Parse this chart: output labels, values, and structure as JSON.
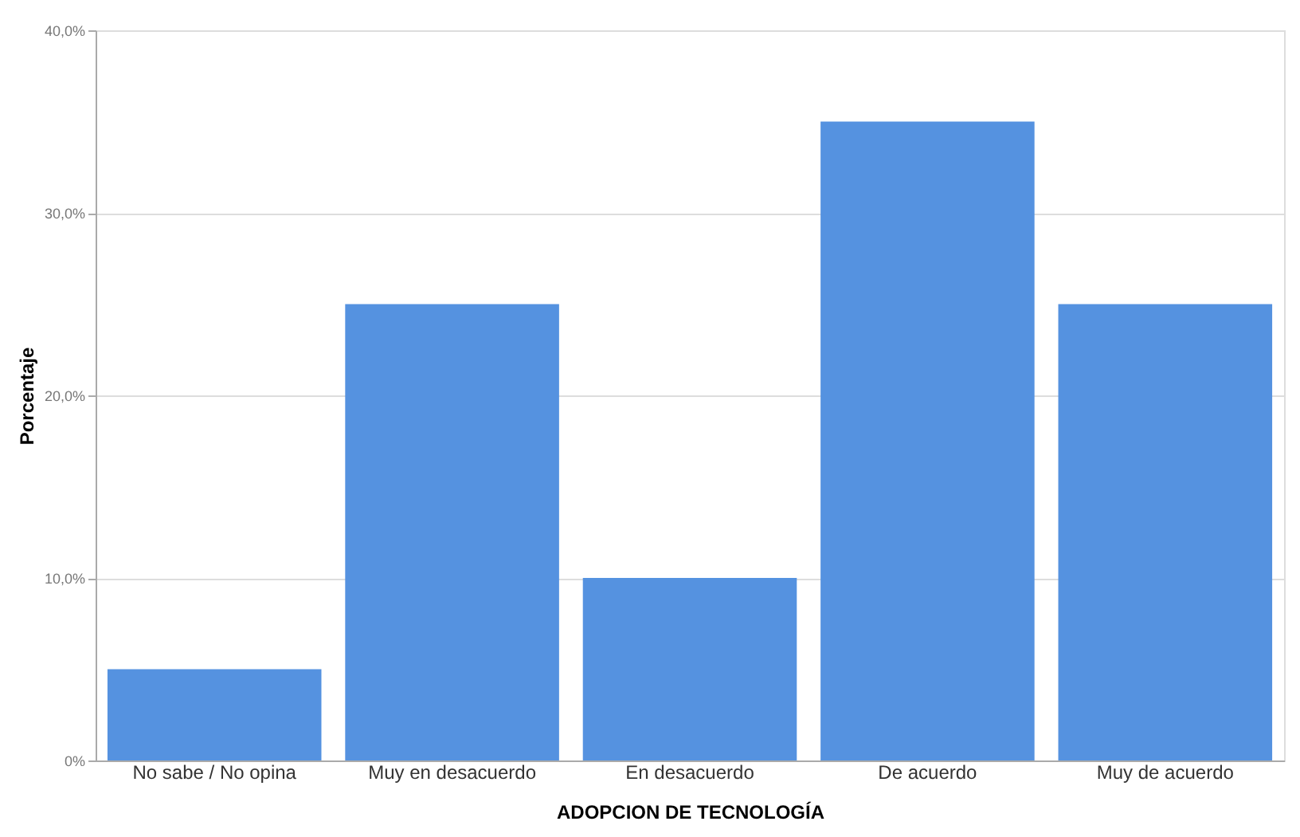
{
  "chart_data": {
    "type": "bar",
    "xlabel": "ADOPCION DE TECNOLOGÍA",
    "ylabel": "Porcentaje",
    "categories": [
      "No sabe / No opina",
      "Muy en desacuerdo",
      "En desacuerdo",
      "De acuerdo",
      "Muy de acuerdo"
    ],
    "values": [
      5,
      25,
      10,
      35,
      25
    ],
    "color": "#5592e0",
    "ylim": [
      0,
      40
    ],
    "yticks": [
      {
        "value": 0,
        "label": "0%"
      },
      {
        "value": 10,
        "label": "10,0%"
      },
      {
        "value": 20,
        "label": "20,0%"
      },
      {
        "value": 30,
        "label": "30,0%"
      },
      {
        "value": 40,
        "label": "40,0%"
      }
    ],
    "grid": "y"
  }
}
